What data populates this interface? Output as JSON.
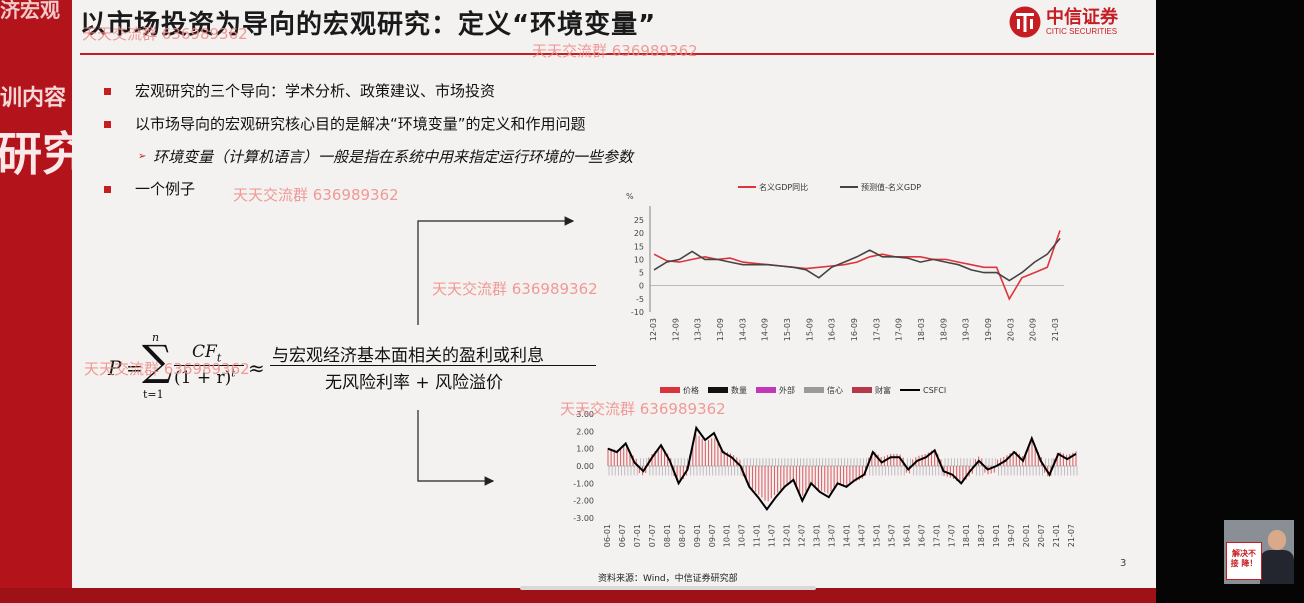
{
  "left_panel": {
    "ghost_top": "济宏观",
    "ghost_mid": "训内容",
    "ghost_big": "研究"
  },
  "header": {
    "title": "以市场投资为导向的宏观研究：定义“环境变量”",
    "logo_name": "中信证券",
    "logo_sub": "CITIC SECURITIES"
  },
  "bullets": [
    "宏观研究的三个导向：学术分析、政策建议、市场投资",
    "以市场导向的宏观研究核心目的是解决“环境变量”的定义和作用问题"
  ],
  "sub_bullet": "环境变量（计算机语言）一般是指在系统中用来指定运行环境的一些参数",
  "example_bullet": "一个例子",
  "watermark": "天天交流群 636989362",
  "formula": {
    "lhs": "P",
    "eq": "=",
    "sum_upper": "n",
    "sum_lower": "t=1",
    "num": "CF",
    "num_sub": "t",
    "den": "(1 + r)",
    "den_sup": "t",
    "approx": "≈",
    "frac_num": "与宏观经济基本面相关的盈利或利息",
    "frac_den": "无风险利率 + 风险溢价"
  },
  "chart_data": [
    {
      "type": "line",
      "unit": "%",
      "series": [
        {
          "name": "名义GDP同比",
          "color": "#e0343a",
          "values": [
            12,
            9.5,
            9,
            10,
            11,
            10,
            10.5,
            9,
            8.5,
            8,
            7.5,
            7,
            6.5,
            7,
            7.5,
            8,
            9,
            11,
            12,
            11,
            11,
            11,
            10,
            10,
            9,
            8,
            7,
            7,
            -5,
            3,
            5,
            7,
            21
          ]
        },
        {
          "name": "预测值-名义GDP",
          "color": "#444444",
          "values": [
            6,
            9,
            10,
            13,
            10,
            10,
            9,
            8,
            8,
            8,
            7.5,
            7,
            6,
            3,
            7,
            9,
            11,
            13.5,
            11,
            11,
            10.5,
            9,
            10,
            9,
            8,
            6,
            5,
            5,
            2,
            5,
            9,
            12,
            18
          ]
        }
      ],
      "x_labels": [
        "12-03",
        "12-09",
        "13-03",
        "13-09",
        "14-03",
        "14-09",
        "15-03",
        "15-09",
        "16-03",
        "16-09",
        "17-03",
        "17-09",
        "18-03",
        "18-09",
        "19-03",
        "19-09",
        "20-03",
        "20-09",
        "21-03"
      ],
      "y_ticks": [
        "25",
        "20",
        "15",
        "10",
        "5",
        "0",
        "-5",
        "-10"
      ],
      "ylim": [
        -10,
        25
      ]
    },
    {
      "type": "bar",
      "series": [
        {
          "name": "价格",
          "color": "#d8343b"
        },
        {
          "name": "数量",
          "color": "#111111"
        },
        {
          "name": "外部",
          "color": "#c03ab7"
        },
        {
          "name": "信心",
          "color": "#9a9a9a"
        },
        {
          "name": "财富",
          "color": "#b5394a"
        },
        {
          "name": "CSFCI",
          "color": "#000000",
          "values": [
            1.0,
            0.8,
            1.3,
            0.2,
            -0.3,
            0.5,
            1.2,
            0.3,
            -1.0,
            -0.2,
            2.2,
            1.5,
            1.9,
            0.8,
            0.5,
            0.0,
            -1.2,
            -1.8,
            -2.5,
            -1.8,
            -1.2,
            -0.8,
            -2.0,
            -1.0,
            -1.5,
            -1.8,
            -1.0,
            -1.2,
            -0.8,
            -0.5,
            0.8,
            0.2,
            0.5,
            0.5,
            -0.2,
            0.3,
            0.5,
            0.9,
            -0.3,
            -0.5,
            -1.0,
            -0.3,
            0.3,
            -0.2,
            0.0,
            0.3,
            0.8,
            0.3,
            1.6,
            0.3,
            -0.5,
            0.7,
            0.4,
            0.7
          ]
        }
      ],
      "x_labels": [
        "06-01",
        "06-07",
        "07-01",
        "07-07",
        "08-01",
        "08-07",
        "09-01",
        "09-07",
        "10-01",
        "10-07",
        "11-01",
        "11-07",
        "12-01",
        "12-07",
        "13-01",
        "13-07",
        "14-01",
        "14-07",
        "15-01",
        "15-07",
        "16-01",
        "16-07",
        "17-01",
        "17-07",
        "18-01",
        "18-07",
        "19-01",
        "19-07",
        "20-01",
        "20-07",
        "21-01",
        "21-07"
      ],
      "y_ticks": [
        "3.00",
        "2.00",
        "1.00",
        "0.00",
        "-1.00",
        "-2.00",
        "-3.00"
      ],
      "ylim": [
        -3,
        3
      ]
    }
  ],
  "footer": {
    "source": "资料来源：Wind，中信证券研究部",
    "page_number": "3"
  },
  "pip": {
    "sign_line1": "解决不",
    "sign_line2": "接 降！"
  }
}
